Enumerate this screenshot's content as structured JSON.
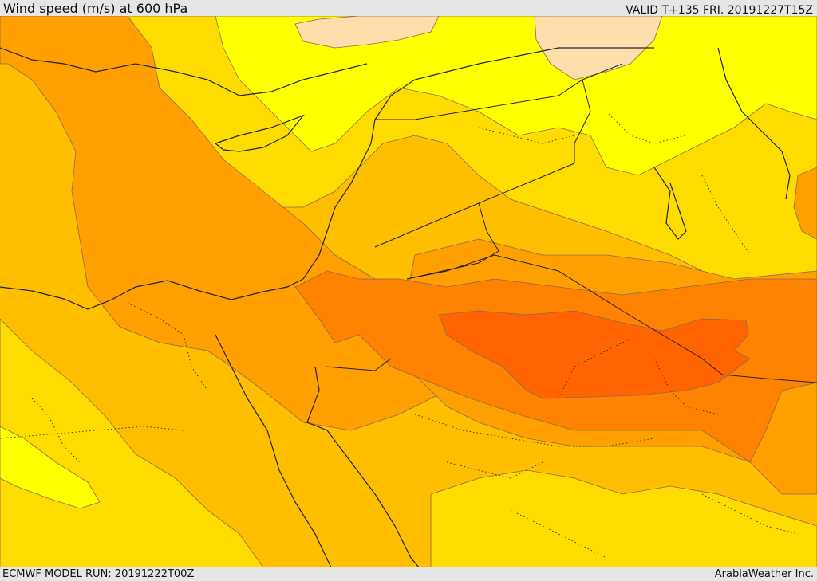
{
  "header": {
    "title": "Wind speed (m/s) at 600 hPa",
    "valid_time": "VALID T+135 FRI. 20191227T15Z"
  },
  "footer": {
    "model_run": "ECMWF MODEL RUN: 20191222T00Z",
    "credit": "ArabiaWeather Inc."
  },
  "map": {
    "colors": {
      "wheat": "#ffdeac",
      "yellow": "#ffff00",
      "gold": "#ffdc00",
      "amber": "#ffbe00",
      "orange": "#ffa000",
      "dark_orange": "#ff8200",
      "red_orange": "#ff6400",
      "contour": "#8a6a5a",
      "border": "#222222"
    }
  }
}
